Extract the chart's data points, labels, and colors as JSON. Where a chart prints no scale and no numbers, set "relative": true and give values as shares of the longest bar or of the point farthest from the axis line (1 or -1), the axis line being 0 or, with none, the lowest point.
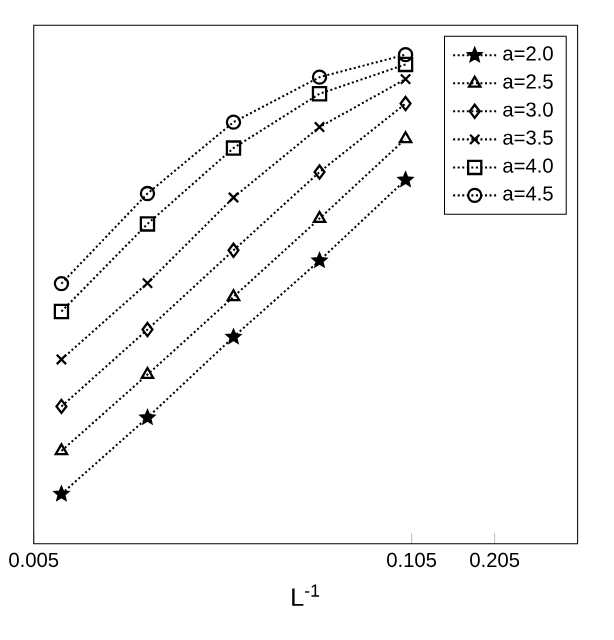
{
  "chart_data": {
    "type": "line",
    "xlabel": "L$^{-1}$",
    "log": "x",
    "relative": true,
    "line_style": "dotted",
    "legend": "top right",
    "xlim": [
      0.005,
      0.4
    ],
    "xticks": [
      0.005,
      0.105,
      0.205
    ],
    "x": [
      0.00625,
      0.0125,
      0.025,
      0.05,
      0.1
    ],
    "series": [
      {
        "name": "a=2.0",
        "color": "#000000",
        "marker": "star",
        "values": [
          0.102,
          0.258,
          0.423,
          0.579,
          0.744
        ]
      },
      {
        "name": "a=2.5",
        "color": "#000000",
        "marker": "triangle",
        "values": [
          0.19,
          0.346,
          0.505,
          0.665,
          0.828
        ]
      },
      {
        "name": "a=3.0",
        "color": "#000000",
        "marker": "diamond",
        "values": [
          0.281,
          0.438,
          0.6,
          0.76,
          0.9
        ]
      },
      {
        "name": "a=3.5",
        "color": "#000000",
        "marker": "cross",
        "values": [
          0.377,
          0.533,
          0.708,
          0.852,
          0.95
        ]
      },
      {
        "name": "a=4.0",
        "color": "#000000",
        "marker": "square",
        "values": [
          0.475,
          0.654,
          0.809,
          0.92,
          0.98
        ]
      },
      {
        "name": "a=4.5",
        "color": "#000000",
        "marker": "circle",
        "values": [
          0.532,
          0.716,
          0.862,
          0.954,
          1.0
        ]
      }
    ]
  }
}
